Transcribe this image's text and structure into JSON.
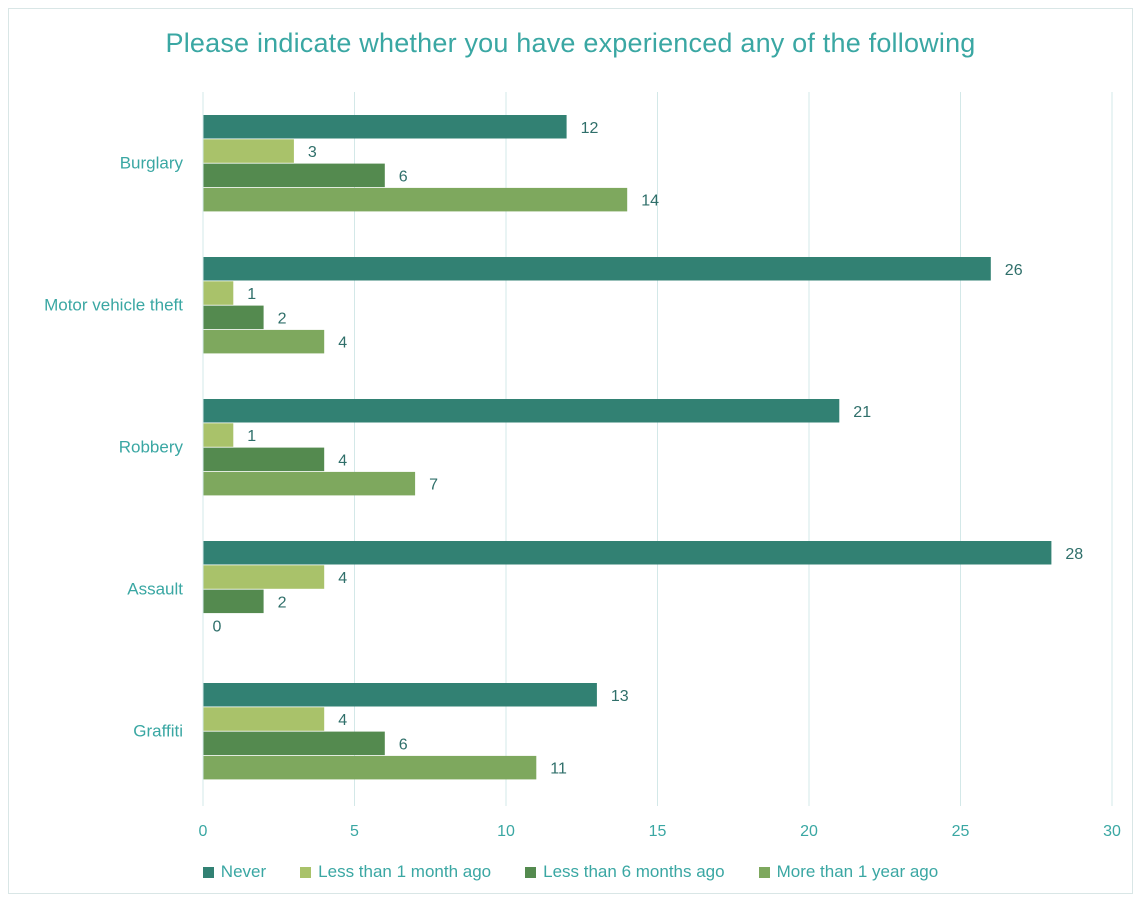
{
  "chart_data": {
    "type": "bar",
    "orientation": "horizontal",
    "title": "Please indicate whether you have experienced any of the following",
    "categories": [
      "Burglary",
      "Motor vehicle theft",
      "Robbery",
      "Assault",
      "Graffiti"
    ],
    "series": [
      {
        "name": "Never",
        "color": "#328173",
        "values": [
          12,
          26,
          21,
          28,
          13
        ]
      },
      {
        "name": "Less than 1 month ago",
        "color": "#a9c26a",
        "values": [
          3,
          1,
          1,
          4,
          4
        ]
      },
      {
        "name": "Less than 6 months ago",
        "color": "#548a4f",
        "values": [
          6,
          2,
          4,
          2,
          6
        ]
      },
      {
        "name": "More than 1 year ago",
        "color": "#7ea85e",
        "values": [
          14,
          4,
          7,
          0,
          11
        ]
      }
    ],
    "xlim": [
      0,
      30
    ],
    "xticks": [
      "0",
      "5",
      "10",
      "15",
      "20",
      "25",
      "30"
    ],
    "grid": true,
    "legend_position": "bottom"
  }
}
